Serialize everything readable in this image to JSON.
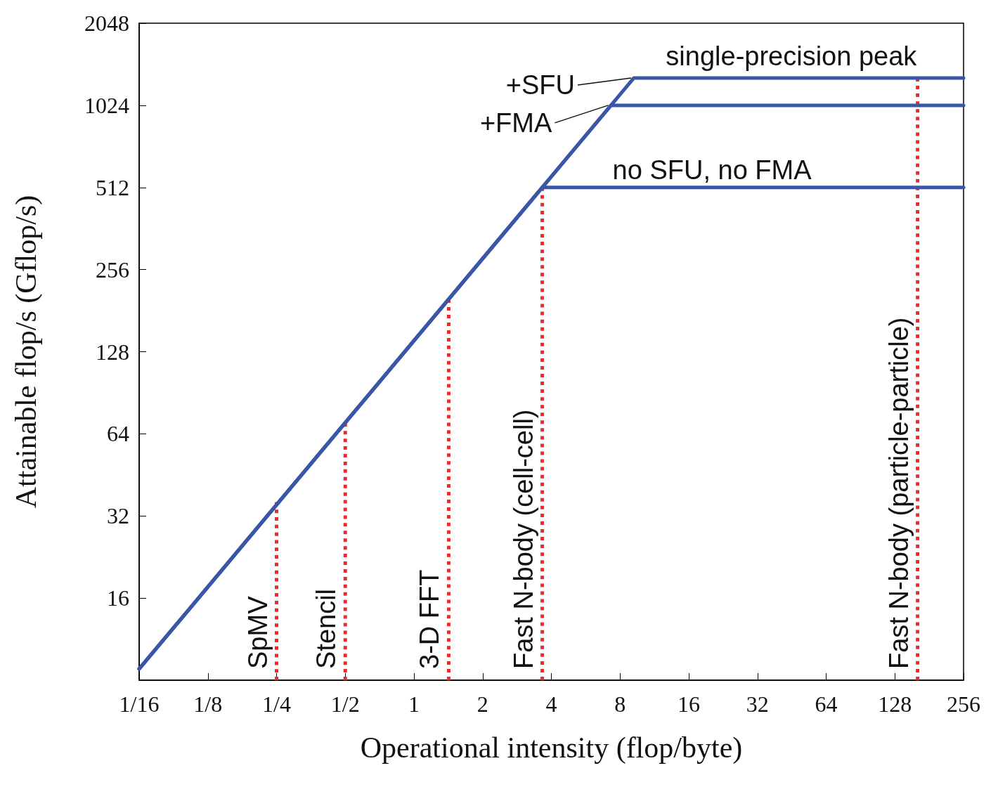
{
  "chart_data": {
    "type": "line",
    "xlabel": "Operational intensity (flop/byte)",
    "ylabel": "Attainable flop/s (Gflop/s)",
    "log": "xy",
    "grid": false,
    "legend": false,
    "marker": "none",
    "xlim": [
      0.0625,
      256
    ],
    "ylim": [
      8,
      2048
    ],
    "xticks": [
      {
        "value": 0.0625,
        "label": "1/16"
      },
      {
        "value": 0.125,
        "label": "1/8"
      },
      {
        "value": 0.25,
        "label": "1/4"
      },
      {
        "value": 0.5,
        "label": "1/2"
      },
      1,
      2,
      4,
      8,
      16,
      32,
      64,
      128,
      256
    ],
    "yticks": [
      16,
      32,
      64,
      128,
      256,
      512,
      1024,
      2048
    ],
    "series": [
      {
        "name": "no SFU, no FMA",
        "color": "#3a56a6",
        "line_style": "solid",
        "x": [
          0.0625,
          3.65,
          256
        ],
        "values": [
          8.8,
          512,
          512
        ]
      },
      {
        "name": "+FMA",
        "color": "#3a56a6",
        "line_style": "solid",
        "x": [
          0.0625,
          7.3,
          256
        ],
        "values": [
          8.8,
          1024,
          1024
        ]
      },
      {
        "name": "+SFU",
        "color": "#3a56a6",
        "line_style": "solid",
        "x": [
          0.0625,
          9.2,
          256
        ],
        "values": [
          8.8,
          1290,
          1290
        ]
      },
      {
        "name": "SpMV",
        "color": "#ee2a2a",
        "line_style": "dotted",
        "x": [
          0.25,
          0.25
        ],
        "values": [
          8,
          36
        ]
      },
      {
        "name": "Stencil",
        "color": "#ee2a2a",
        "line_style": "dotted",
        "x": [
          0.5,
          0.5
        ],
        "values": [
          8,
          70
        ]
      },
      {
        "name": "3-D FFT",
        "color": "#ee2a2a",
        "line_style": "dotted",
        "x": [
          1.42,
          1.42
        ],
        "values": [
          8,
          199
        ]
      },
      {
        "name": "Fast N-body (cell-cell)",
        "color": "#ee2a2a",
        "line_style": "dotted",
        "x": [
          3.65,
          3.65
        ],
        "values": [
          8,
          512
        ]
      },
      {
        "name": "Fast N-body (particle-particle)",
        "color": "#ee2a2a",
        "line_style": "dotted",
        "x": [
          161,
          161
        ],
        "values": [
          8,
          1290
        ]
      }
    ],
    "annotations": [
      {
        "text": "single-precision peak",
        "x": 45,
        "y": 1290
      }
    ]
  }
}
